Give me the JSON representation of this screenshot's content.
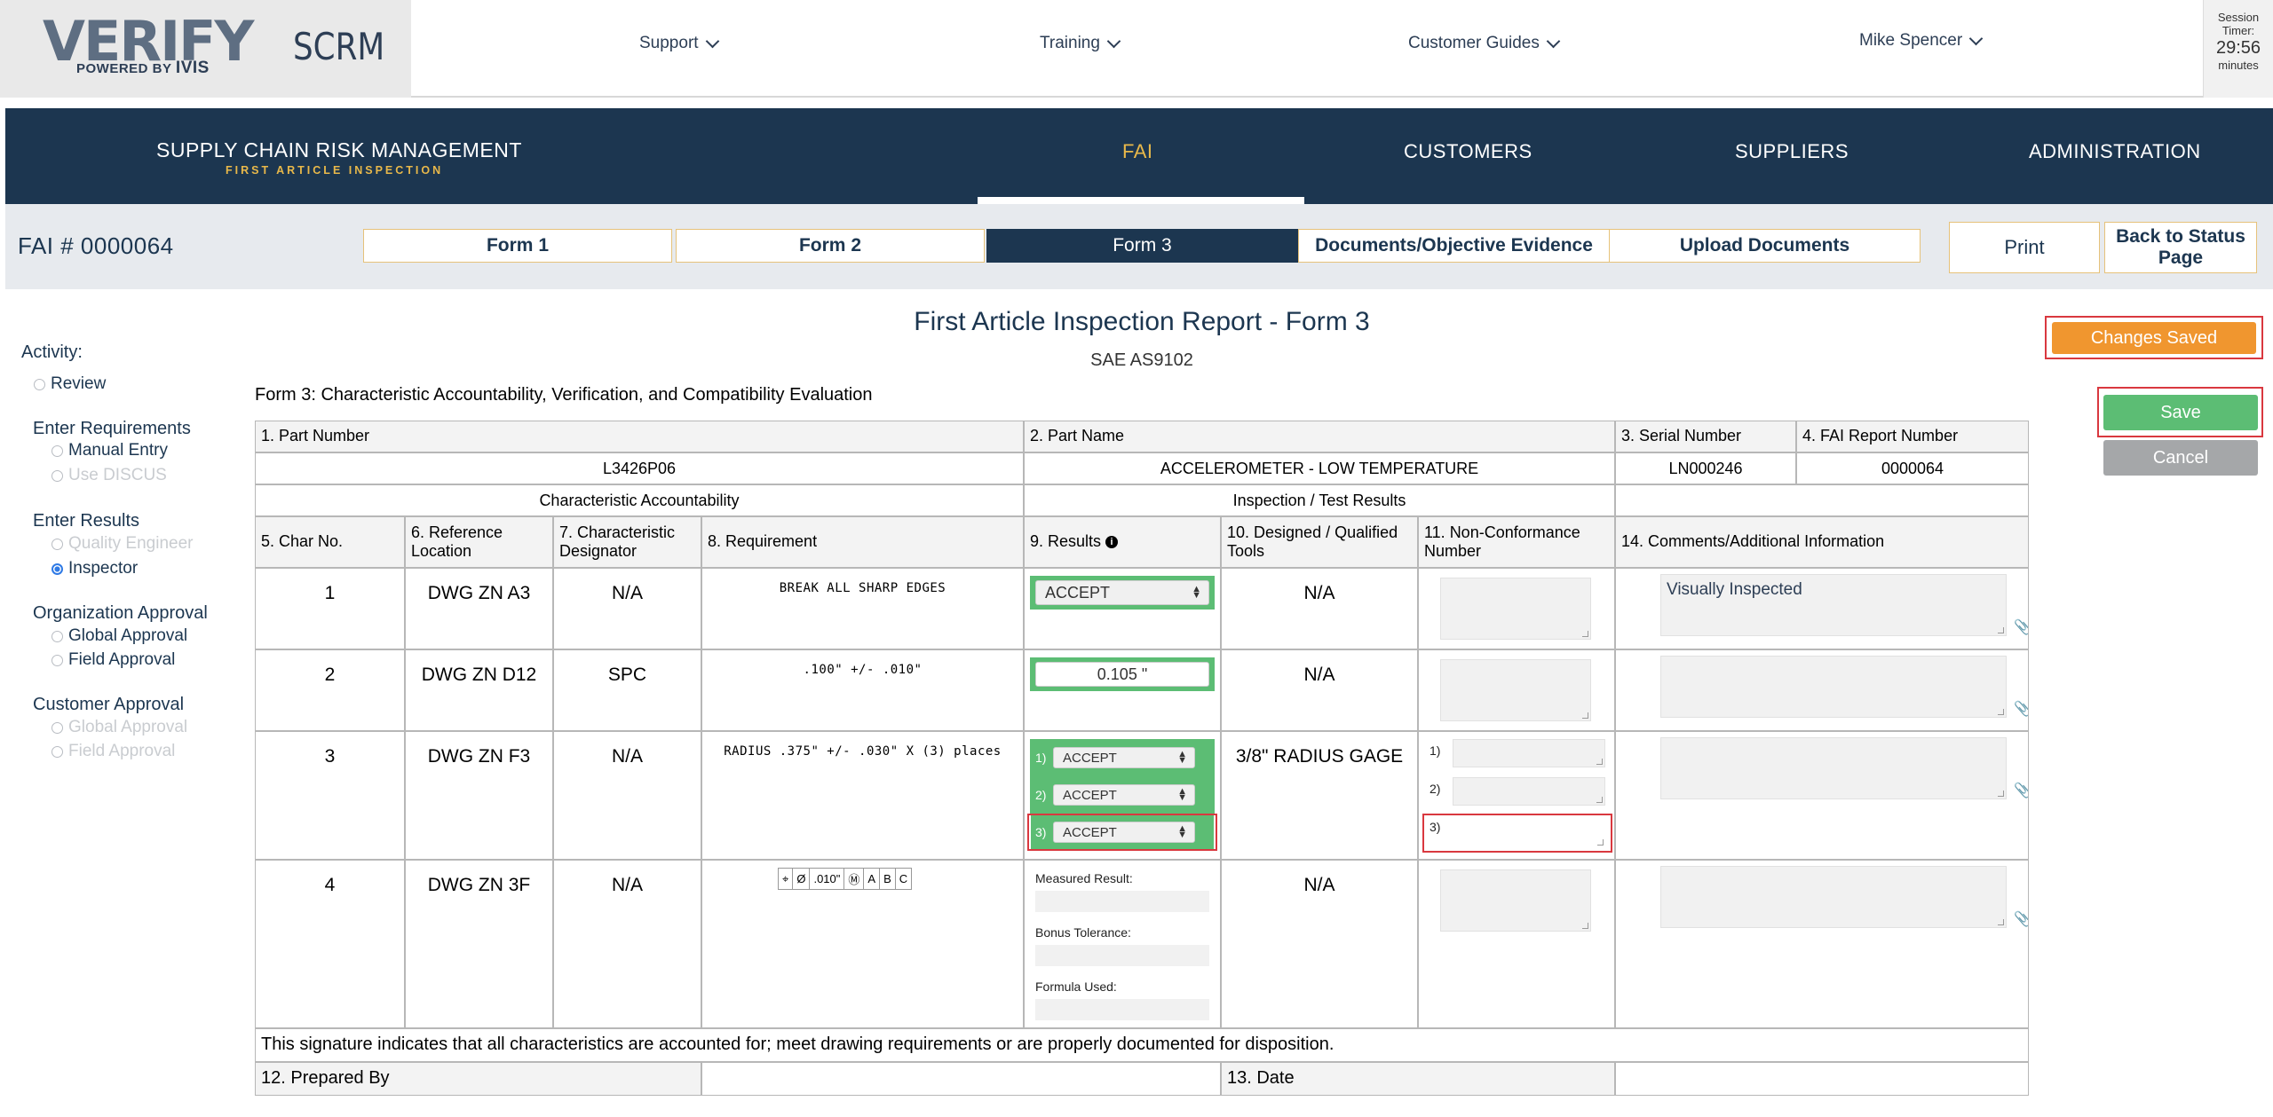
{
  "header": {
    "logo_text": "VERIFY",
    "logo_powered": "POWERED BY",
    "logo_ivis": "IVIS",
    "app_name": "SCRM",
    "nav": [
      {
        "label": "Support",
        "icon": "chevron-down-icon"
      },
      {
        "label": "Training",
        "icon": "chevron-down-icon"
      },
      {
        "label": "Customer Guides",
        "icon": "chevron-down-icon"
      }
    ],
    "user_name": "Mike Spencer",
    "session": {
      "label": "Session Timer:",
      "time": "29:56",
      "unit": "minutes"
    }
  },
  "main_nav": {
    "brand_title": "SUPPLY CHAIN RISK MANAGEMENT",
    "brand_subtitle": "FIRST ARTICLE INSPECTION",
    "items": [
      "FAI",
      "CUSTOMERS",
      "SUPPLIERS",
      "ADMINISTRATION"
    ],
    "active": "FAI",
    "active_color": "#e8b84a"
  },
  "form_bar": {
    "fai_number": "FAI # 0000064",
    "tabs": [
      "Form 1",
      "Form 2",
      "Form 3",
      "Documents/Objective Evidence",
      "Upload Documents"
    ],
    "active_tab": "Form 3",
    "print_label": "Print",
    "back_label": "Back to Status Page"
  },
  "sidebar": {
    "activity_label": "Activity:",
    "review_label": "Review",
    "enter_requirements": {
      "label": "Enter Requirements",
      "options": [
        "Manual Entry",
        "Use DISCUS"
      ]
    },
    "enter_results": {
      "label": "Enter Results",
      "options": [
        "Quality Engineer",
        "Inspector"
      ],
      "selected": "Inspector"
    },
    "org_approval": {
      "label": "Organization Approval",
      "options": [
        "Global Approval",
        "Field Approval"
      ]
    },
    "customer_approval": {
      "label": "Customer Approval",
      "options": [
        "Global Approval",
        "Field Approval"
      ]
    }
  },
  "report": {
    "title": "First Article Inspection Report - Form 3",
    "subtitle": "SAE AS9102",
    "caption": "Form 3: Characteristic Accountability, Verification, and Compatibility Evaluation"
  },
  "actions": {
    "changes_saved": "Changes Saved",
    "save": "Save",
    "cancel": "Cancel",
    "changes_color": "#f0962f",
    "save_color": "#5cbd74"
  },
  "table": {
    "h_part_number": "1. Part Number",
    "h_part_name": "2. Part Name",
    "h_serial": "3. Serial Number",
    "h_fai_report": "4. FAI Report Number",
    "part_number": "L3426P06",
    "part_name": "ACCELEROMETER - LOW TEMPERATURE",
    "serial_number": "LN000246",
    "fai_report_number": "0000064",
    "section_char": "Characteristic Accountability",
    "section_insp": "Inspection / Test Results",
    "col_char_no": "5. Char No.",
    "col_ref": "6. Reference Location",
    "col_designator": "7. Characteristic Designator",
    "col_requirement": "8. Requirement",
    "col_results": "9. Results",
    "col_tools": "10. Designed / Qualified Tools",
    "col_ncr": "11. Non-Conformance Number",
    "col_comments": "14. Comments/Additional Information",
    "rows": [
      {
        "char_no": "1",
        "ref": "DWG ZN A3",
        "designator": "N/A",
        "requirement": "BREAK ALL SHARP EDGES",
        "result": "ACCEPT",
        "tools": "N/A",
        "comments": "Visually Inspected"
      },
      {
        "char_no": "2",
        "ref": "DWG ZN D12",
        "designator": "SPC",
        "requirement": ".100\" +/- .010\"",
        "result": "0.105 \"",
        "tools": "N/A",
        "comments": ""
      },
      {
        "char_no": "3",
        "ref": "DWG ZN F3",
        "designator": "N/A",
        "requirement": "RADIUS .375\" +/- .030\" X (3) places",
        "results": [
          {
            "num": "1)",
            "value": "ACCEPT"
          },
          {
            "num": "2)",
            "value": "ACCEPT"
          },
          {
            "num": "3)",
            "value": "ACCEPT"
          }
        ],
        "tools": "3/8\" RADIUS GAGE",
        "ncr_nums": [
          "1)",
          "2)",
          "3)"
        ],
        "comments": ""
      },
      {
        "char_no": "4",
        "ref": "DWG ZN 3F",
        "designator": "N/A",
        "fcf": [
          "⌖",
          "Ø",
          ".010\"",
          "Ⓜ",
          "A",
          "B",
          "C"
        ],
        "measured_label": "Measured Result:",
        "bonus_label": "Bonus Tolerance:",
        "formula_label": "Formula Used:",
        "tools": "N/A",
        "comments": ""
      }
    ],
    "signature_text": "This signature indicates that all characteristics are accounted for; meet drawing requirements or are properly documented for disposition.",
    "prepared_by_label": "12. Prepared By",
    "date_label": "13. Date"
  }
}
